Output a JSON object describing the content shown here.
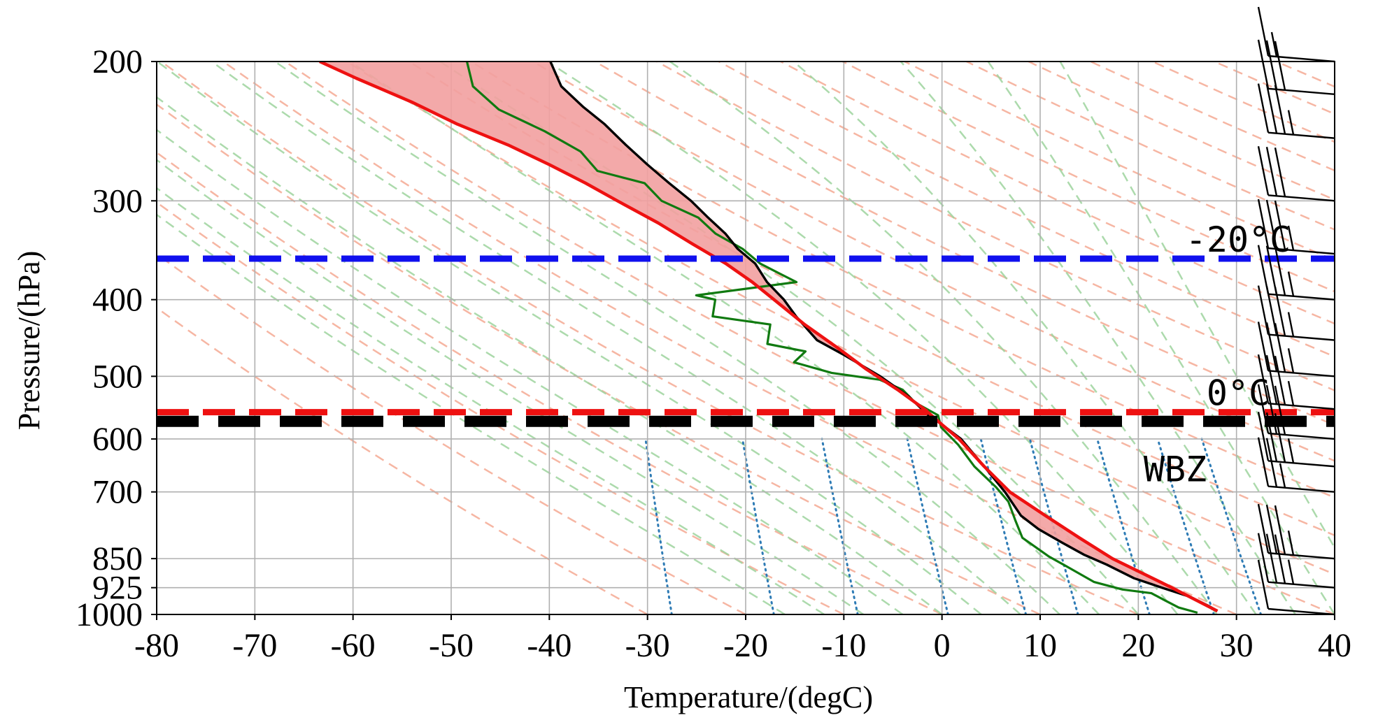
{
  "chart_data": {
    "type": "line",
    "subtype": "skew-T log-p sounding",
    "xlabel": "Temperature/(degC)",
    "ylabel": "Pressure/(hPa)",
    "xlim": [
      -80,
      40
    ],
    "ylim": [
      1000,
      200
    ],
    "y_scale": "log",
    "grid": true,
    "xticks": [
      "-80",
      "-70",
      "-60",
      "-50",
      "-40",
      "-30",
      "-20",
      "-10",
      "0",
      "10",
      "20",
      "30",
      "40"
    ],
    "yticks": [
      "200",
      "300",
      "400",
      "500",
      "600",
      "700",
      "850",
      "925",
      "1000"
    ],
    "ytick_values": [
      200,
      300,
      400,
      500,
      600,
      700,
      850,
      925,
      1000
    ],
    "colors": {
      "temperature": "#000000",
      "dewpoint": "#107a10",
      "parcel": "#ee1111",
      "cape_fill": "#f2a0a0",
      "dry_adiabat": "#f4a48c",
      "moist_adiabat": "#9dd39d",
      "mixing_ratio": "#2e7bb5",
      "minus20_line": "#1010ee",
      "zero_line": "#ee1111",
      "wbz_line": "#000000",
      "grid": "#b0b0b0"
    },
    "series": [
      {
        "name": "",
        "role": "temperature",
        "points": [
          [
            28,
            990
          ],
          [
            27,
            975
          ],
          [
            25,
            950
          ],
          [
            22,
            925
          ],
          [
            19,
            900
          ],
          [
            16,
            865
          ],
          [
            13.5,
            840
          ],
          [
            11,
            810
          ],
          [
            8.5,
            780
          ],
          [
            6.5,
            750
          ],
          [
            4.5,
            700
          ],
          [
            2,
            650
          ],
          [
            -0.8,
            600
          ],
          [
            -3,
            575
          ],
          [
            -4.5,
            560
          ],
          [
            -6.8,
            530
          ],
          [
            -10,
            500
          ],
          [
            -14,
            470
          ],
          [
            -17,
            450
          ],
          [
            -19.5,
            420
          ],
          [
            -21,
            400
          ],
          [
            -23,
            380
          ],
          [
            -24.5,
            360
          ],
          [
            -26.5,
            345
          ],
          [
            -28,
            330
          ],
          [
            -30,
            315
          ],
          [
            -32,
            300
          ],
          [
            -34.5,
            285
          ],
          [
            -37,
            270
          ],
          [
            -39.5,
            255
          ],
          [
            -42,
            240
          ],
          [
            -44.5,
            228
          ],
          [
            -47,
            215
          ],
          [
            -48.5,
            200
          ]
        ]
      },
      {
        "name": "",
        "role": "dewpoint",
        "points": [
          [
            26,
            995
          ],
          [
            24,
            980
          ],
          [
            22.5,
            960
          ],
          [
            21,
            940
          ],
          [
            18,
            930
          ],
          [
            15,
            910
          ],
          [
            12,
            870
          ],
          [
            10,
            845
          ],
          [
            7,
            800
          ],
          [
            6,
            760
          ],
          [
            5,
            720
          ],
          [
            3.5,
            690
          ],
          [
            1,
            650
          ],
          [
            -1,
            610
          ],
          [
            -3,
            580
          ],
          [
            -3.5,
            560
          ],
          [
            -6,
            540
          ],
          [
            -7.5,
            520
          ],
          [
            -10,
            505
          ],
          [
            -15,
            495
          ],
          [
            -19,
            480
          ],
          [
            -18,
            465
          ],
          [
            -22,
            455
          ],
          [
            -22,
            430
          ],
          [
            -28,
            420
          ],
          [
            -28,
            400
          ],
          [
            -30,
            395
          ],
          [
            -20,
            380
          ],
          [
            -22,
            370
          ],
          [
            -24,
            360
          ],
          [
            -26,
            345
          ],
          [
            -29,
            330
          ],
          [
            -31,
            315
          ],
          [
            -35,
            300
          ],
          [
            -37,
            285
          ],
          [
            -42,
            275
          ],
          [
            -44,
            260
          ],
          [
            -48,
            245
          ],
          [
            -53,
            230
          ],
          [
            -56,
            215
          ],
          [
            -57,
            200
          ]
        ]
      },
      {
        "name": "",
        "role": "parcel",
        "points": [
          [
            28,
            990
          ],
          [
            23,
            925
          ],
          [
            16.5,
            850
          ],
          [
            12.8,
            800
          ],
          [
            9,
            750
          ],
          [
            5,
            700
          ],
          [
            2,
            650
          ],
          [
            -1,
            600
          ],
          [
            -3,
            575
          ],
          [
            -5,
            550
          ],
          [
            -8,
            520
          ],
          [
            -11.5,
            490
          ],
          [
            -14.8,
            460
          ],
          [
            -18.5,
            430
          ],
          [
            -22,
            400
          ],
          [
            -24.5,
            380
          ],
          [
            -27.5,
            360
          ],
          [
            -31.2,
            340
          ],
          [
            -35,
            320
          ],
          [
            -39.5,
            300
          ],
          [
            -43,
            285
          ],
          [
            -47,
            270
          ],
          [
            -51.5,
            255
          ],
          [
            -57,
            240
          ],
          [
            -62,
            225
          ],
          [
            -68,
            210
          ],
          [
            -72,
            200
          ]
        ]
      }
    ],
    "levels": [
      {
        "pressure": 355,
        "color": "#1010ee",
        "label": "-20°C"
      },
      {
        "pressure": 555,
        "color": "#ee1111",
        "label": "0°C"
      },
      {
        "pressure": 570,
        "color": "#000000",
        "label": "WBZ"
      }
    ],
    "wind_barbs": [
      {
        "pressure": 1000,
        "speed_kt": 10
      },
      {
        "pressure": 925,
        "speed_kt": 35
      },
      {
        "pressure": 850,
        "speed_kt": 35
      },
      {
        "pressure": 700,
        "speed_kt": 25
      },
      {
        "pressure": 650,
        "speed_kt": 35
      },
      {
        "pressure": 600,
        "speed_kt": 30
      },
      {
        "pressure": 550,
        "speed_kt": 35
      },
      {
        "pressure": 500,
        "speed_kt": 35
      },
      {
        "pressure": 450,
        "speed_kt": 35
      },
      {
        "pressure": 400,
        "speed_kt": 35
      },
      {
        "pressure": 350,
        "speed_kt": 35
      },
      {
        "pressure": 300,
        "speed_kt": 30
      },
      {
        "pressure": 250,
        "speed_kt": 35
      },
      {
        "pressure": 220,
        "speed_kt": 30
      },
      {
        "pressure": 200,
        "speed_kt": 15
      }
    ]
  }
}
